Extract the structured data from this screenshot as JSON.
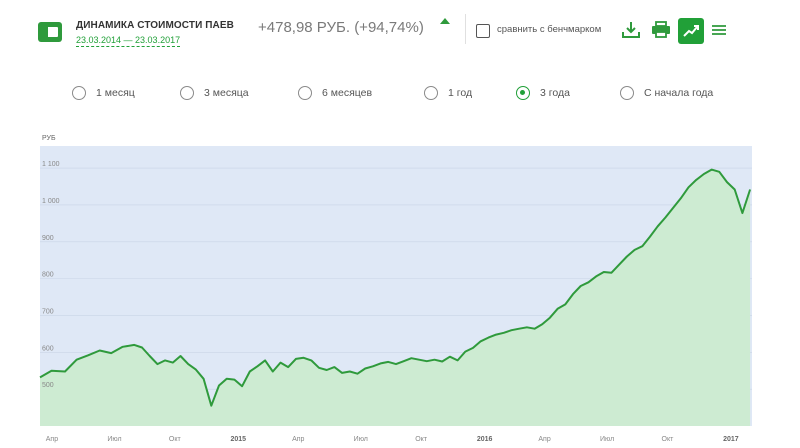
{
  "header": {
    "title": "ДИНАМИКА СТОИМОСТИ ПАЕВ",
    "period_range": "23.03.2014 — 23.03.2017",
    "change": "+478,98 РУБ. (+94,74%)",
    "compare_label": "сравнить с бенчмарком",
    "icons": [
      "fund-icon",
      "caret-up-icon",
      "download-icon",
      "print-icon",
      "chart-icon",
      "menu-icon"
    ]
  },
  "periods": {
    "options": [
      "1 месяц",
      "3 месяца",
      "6 месяцев",
      "1 год",
      "3 года",
      "С начала года"
    ],
    "selected": "3 года"
  },
  "colors": {
    "accent": "#21a038",
    "line": "#2f9a3c",
    "area": "#cdebd2",
    "plot_bg": "#dfe8f6"
  },
  "chart_data": {
    "type": "area",
    "y_unit": "РУБ",
    "ylim": [
      400,
      1160
    ],
    "y_ticks": [
      {
        "value": 500,
        "label": "500"
      },
      {
        "value": 600,
        "label": "600"
      },
      {
        "value": 700,
        "label": "700"
      },
      {
        "value": 800,
        "label": "800"
      },
      {
        "value": 900,
        "label": "900"
      },
      {
        "value": 1000,
        "label": "1 000"
      },
      {
        "value": 1100,
        "label": "1 100"
      }
    ],
    "x_ticks": [
      {
        "t": 0.0,
        "label": "Апр",
        "year": false
      },
      {
        "t": 3.2,
        "label": "Июл",
        "year": false
      },
      {
        "t": 6.4,
        "label": "Окт",
        "year": false
      },
      {
        "t": 9.6,
        "label": "2015",
        "year": true
      },
      {
        "t": 12.8,
        "label": "Апр",
        "year": false
      },
      {
        "t": 16.0,
        "label": "Июл",
        "year": false
      },
      {
        "t": 19.2,
        "label": "Окт",
        "year": false
      },
      {
        "t": 22.4,
        "label": "2016",
        "year": true
      },
      {
        "t": 25.6,
        "label": "Апр",
        "year": false
      },
      {
        "t": 28.8,
        "label": "Июл",
        "year": false
      },
      {
        "t": 32.0,
        "label": "Окт",
        "year": false
      },
      {
        "t": 35.2,
        "label": "2017",
        "year": true
      }
    ],
    "x_range": [
      -0.3,
      36.7
    ],
    "grid": true,
    "legend": "none",
    "series": [
      {
        "x": [
          -0.3,
          0.3,
          1.0,
          1.6,
          2.2,
          2.8,
          3.4,
          4.0,
          4.6,
          5.0,
          5.4,
          5.8,
          6.2,
          6.6,
          7.0,
          7.4,
          7.8,
          8.2,
          8.6,
          9.0,
          9.4,
          9.8,
          10.2,
          10.6,
          11.0,
          11.4,
          11.8,
          12.2,
          12.6,
          13.0,
          13.4,
          13.8,
          14.2,
          14.6,
          15.0,
          15.4,
          15.8,
          16.2,
          16.6,
          17.0,
          17.4,
          17.8,
          18.2,
          18.6,
          19.0,
          19.4,
          19.8,
          20.2,
          20.6,
          21.0,
          21.4,
          21.8,
          22.2,
          22.6,
          23.0,
          23.4,
          23.8,
          24.2,
          24.6,
          25.0,
          25.4,
          25.8,
          26.2,
          26.6,
          27.0,
          27.4,
          27.8,
          28.2,
          28.6,
          29.0,
          29.4,
          29.8,
          30.2,
          30.6,
          31.0,
          31.4,
          31.8,
          32.2,
          32.6,
          33.0,
          33.4,
          33.8,
          34.2,
          34.6,
          35.0,
          35.4,
          35.8,
          36.2,
          36.6
        ],
        "values": [
          532,
          550,
          548,
          580,
          592,
          605,
          598,
          615,
          620,
          613,
          590,
          568,
          578,
          572,
          590,
          568,
          553,
          528,
          455,
          510,
          528,
          526,
          508,
          548,
          562,
          578,
          548,
          572,
          560,
          582,
          585,
          578,
          558,
          552,
          560,
          544,
          548,
          542,
          556,
          562,
          570,
          574,
          568,
          576,
          584,
          580,
          576,
          580,
          575,
          588,
          578,
          602,
          612,
          630,
          640,
          648,
          653,
          660,
          664,
          668,
          664,
          676,
          694,
          718,
          730,
          758,
          780,
          790,
          806,
          818,
          816,
          838,
          860,
          878,
          888,
          914,
          942,
          966,
          992,
          1018,
          1048,
          1068,
          1084,
          1096,
          1090,
          1062,
          1042,
          978,
          1042
        ]
      }
    ]
  }
}
